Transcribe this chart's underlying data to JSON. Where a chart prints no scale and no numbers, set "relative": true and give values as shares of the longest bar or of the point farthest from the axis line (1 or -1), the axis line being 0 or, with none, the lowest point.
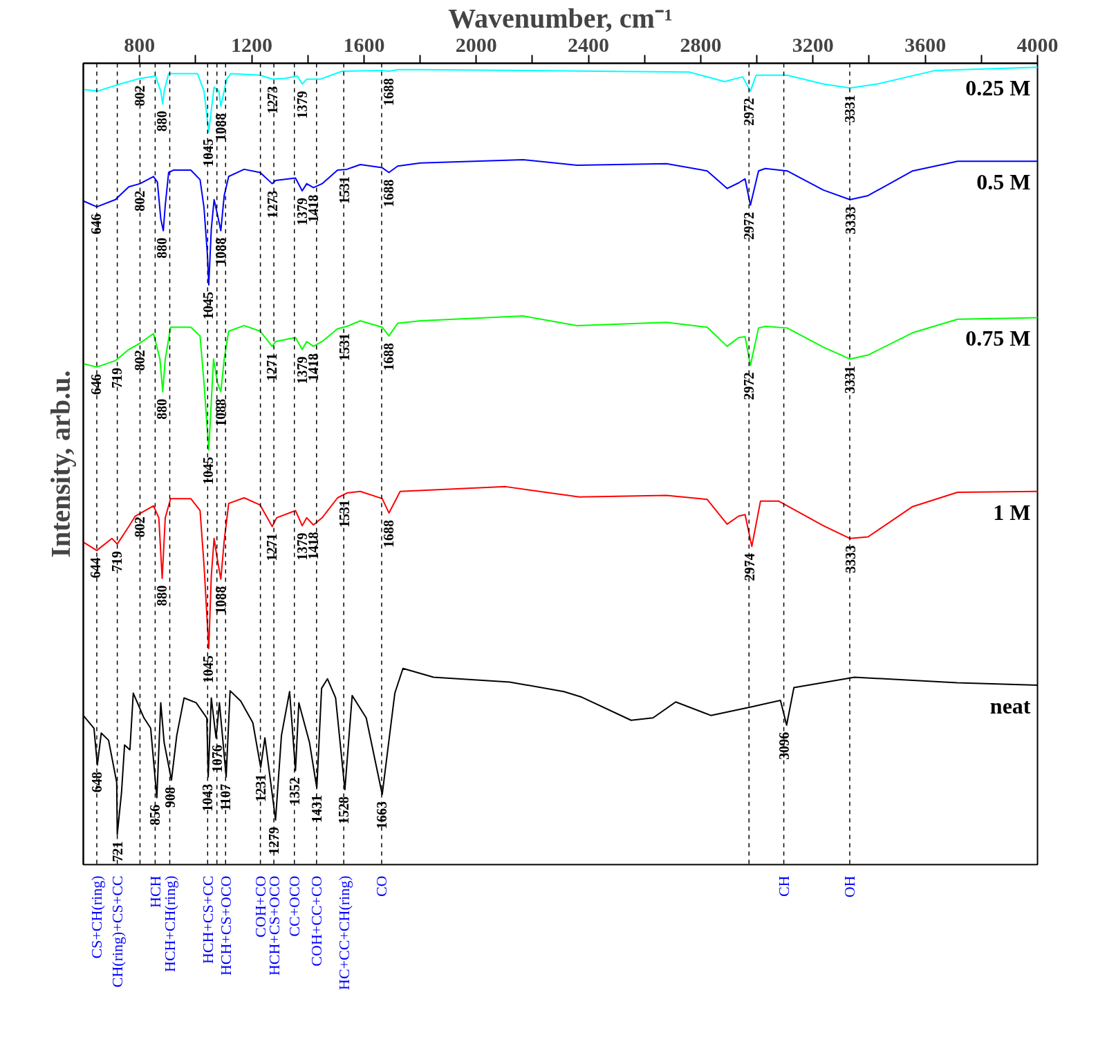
{
  "chart_data": {
    "type": "line",
    "relative": true,
    "xlabel": "Wavenumber, cm⁻¹",
    "ylabel": "Intensity, arb.u.",
    "tick_labels": "x",
    "marker": "none",
    "line_style": "solid",
    "xlim": [
      600,
      4000
    ],
    "xticks": [
      800,
      {
        "value": 1000,
        "label": null
      },
      1200,
      {
        "value": 1400,
        "label": null
      },
      1600,
      {
        "value": 1800,
        "label": null
      },
      2000,
      {
        "value": 2200,
        "label": null
      },
      2400,
      {
        "value": 2600,
        "label": null
      },
      2800,
      {
        "value": 3000,
        "label": null
      },
      3200,
      {
        "value": 3400,
        "label": null
      },
      3600,
      {
        "value": 3800,
        "label": null
      },
      4000
    ],
    "series": [
      {
        "name": "0.25 M",
        "color": "#00ffff",
        "x": [
          602,
          650,
          731,
          802,
          857,
          876,
          883,
          888,
          904,
          1007,
          1030,
          1047,
          1059,
          1066,
          1083,
          1090,
          1111,
          1125,
          1230,
          1273,
          1316,
          1363,
          1380,
          1396,
          1444,
          1522,
          1665,
          1689,
          1720,
          1801,
          2759,
          2885,
          2949,
          2977,
          2997,
          3108,
          3237,
          3332,
          3429,
          3636,
          4000
        ],
        "values": [
          0.972,
          0.97,
          0.979,
          0.986,
          0.989,
          0.97,
          0.954,
          0.97,
          0.992,
          0.992,
          0.97,
          0.919,
          0.955,
          0.975,
          0.97,
          0.951,
          0.985,
          0.992,
          0.99,
          0.985,
          0.986,
          0.989,
          0.979,
          0.985,
          0.985,
          0.995,
          0.996,
          0.995,
          0.997,
          0.997,
          0.994,
          0.982,
          0.988,
          0.97,
          0.99,
          0.99,
          0.979,
          0.974,
          0.979,
          0.996,
          1.0
        ]
      },
      {
        "name": "0.5 M",
        "color": "#0000ff",
        "x": [
          602,
          648,
          714,
          762,
          802,
          850,
          864,
          876,
          885,
          892,
          904,
          921,
          983,
          1016,
          1030,
          1042,
          1047,
          1056,
          1066,
          1078,
          1090,
          1102,
          1118,
          1173,
          1230,
          1273,
          1285,
          1356,
          1380,
          1396,
          1420,
          1451,
          1506,
          1539,
          1587,
          1665,
          1689,
          1720,
          1801,
          2167,
          2359,
          2678,
          2823,
          2894,
          2935,
          2958,
          2977,
          3006,
          3030,
          3108,
          3237,
          3332,
          3396,
          3555,
          3715,
          4000
        ],
        "values": [
          0.832,
          0.825,
          0.834,
          0.85,
          0.854,
          0.863,
          0.856,
          0.81,
          0.795,
          0.827,
          0.868,
          0.871,
          0.871,
          0.859,
          0.824,
          0.766,
          0.727,
          0.797,
          0.834,
          0.815,
          0.795,
          0.839,
          0.863,
          0.872,
          0.868,
          0.854,
          0.858,
          0.861,
          0.845,
          0.854,
          0.849,
          0.854,
          0.871,
          0.872,
          0.878,
          0.874,
          0.868,
          0.876,
          0.88,
          0.884,
          0.877,
          0.879,
          0.87,
          0.848,
          0.855,
          0.86,
          0.827,
          0.87,
          0.873,
          0.87,
          0.846,
          0.834,
          0.839,
          0.87,
          0.882,
          0.882
        ]
      },
      {
        "name": "0.75 M",
        "color": "#00ff00",
        "x": [
          602,
          648,
          714,
          762,
          802,
          850,
          873,
          883,
          892,
          911,
          983,
          1016,
          1030,
          1047,
          1064,
          1078,
          1090,
          1102,
          1118,
          1173,
          1230,
          1273,
          1285,
          1356,
          1380,
          1396,
          1420,
          1451,
          1506,
          1539,
          1587,
          1665,
          1689,
          1720,
          1801,
          2167,
          2359,
          2678,
          2823,
          2894,
          2935,
          2958,
          2977,
          3006,
          3030,
          3108,
          3237,
          3332,
          3396,
          3555,
          3715,
          4000
        ],
        "values": [
          0.628,
          0.624,
          0.632,
          0.646,
          0.654,
          0.666,
          0.634,
          0.593,
          0.634,
          0.674,
          0.674,
          0.663,
          0.604,
          0.52,
          0.634,
          0.604,
          0.593,
          0.634,
          0.669,
          0.676,
          0.669,
          0.65,
          0.656,
          0.661,
          0.646,
          0.656,
          0.65,
          0.656,
          0.672,
          0.675,
          0.682,
          0.674,
          0.663,
          0.679,
          0.682,
          0.688,
          0.676,
          0.68,
          0.674,
          0.65,
          0.661,
          0.662,
          0.626,
          0.673,
          0.675,
          0.673,
          0.649,
          0.634,
          0.639,
          0.667,
          0.684,
          0.686
        ]
      },
      {
        "name": "1 M",
        "color": "#ff0000",
        "x": [
          602,
          648,
          702,
          721,
          762,
          785,
          850,
          869,
          881,
          892,
          911,
          983,
          1016,
          1030,
          1047,
          1056,
          1066,
          1078,
          1090,
          1102,
          1118,
          1173,
          1230,
          1273,
          1289,
          1356,
          1380,
          1396,
          1420,
          1451,
          1506,
          1539,
          1587,
          1665,
          1689,
          1729,
          2105,
          2367,
          2678,
          2823,
          2894,
          2935,
          2958,
          2982,
          3013,
          3077,
          3237,
          3332,
          3396,
          3555,
          3715,
          4000
        ],
        "values": [
          0.404,
          0.394,
          0.409,
          0.402,
          0.424,
          0.437,
          0.45,
          0.435,
          0.359,
          0.435,
          0.459,
          0.459,
          0.444,
          0.376,
          0.271,
          0.362,
          0.409,
          0.382,
          0.358,
          0.406,
          0.453,
          0.46,
          0.451,
          0.424,
          0.435,
          0.444,
          0.425,
          0.435,
          0.426,
          0.435,
          0.46,
          0.466,
          0.468,
          0.459,
          0.441,
          0.468,
          0.474,
          0.461,
          0.463,
          0.458,
          0.427,
          0.437,
          0.439,
          0.399,
          0.456,
          0.456,
          0.425,
          0.409,
          0.411,
          0.449,
          0.467,
          0.468
        ]
      },
      {
        "name": "neat",
        "color": "#000000",
        "x": [
          600,
          638,
          650,
          664,
          690,
          719,
          721,
          736,
          747,
          766,
          778,
          816,
          840,
          862,
          876,
          888,
          914,
          933,
          959,
          1002,
          1040,
          1045,
          1056,
          1073,
          1085,
          1109,
          1123,
          1161,
          1204,
          1232,
          1247,
          1285,
          1306,
          1335,
          1356,
          1368,
          1406,
          1432,
          1449,
          1470,
          1499,
          1532,
          1558,
          1608,
          1665,
          1710,
          1739,
          1848,
          2119,
          2312,
          2376,
          2552,
          2630,
          2711,
          2837,
          2982,
          3084,
          3106,
          3132,
          3348,
          3714,
          4000
        ],
        "values": [
          0.187,
          0.171,
          0.125,
          0.165,
          0.156,
          0.103,
          0.038,
          0.09,
          0.15,
          0.144,
          0.215,
          0.184,
          0.171,
          0.084,
          0.203,
          0.153,
          0.106,
          0.162,
          0.209,
          0.203,
          0.184,
          0.11,
          0.209,
          0.159,
          0.203,
          0.11,
          0.218,
          0.205,
          0.178,
          0.122,
          0.159,
          0.056,
          0.162,
          0.217,
          0.118,
          0.203,
          0.153,
          0.096,
          0.221,
          0.233,
          0.209,
          0.094,
          0.212,
          0.184,
          0.088,
          0.215,
          0.246,
          0.235,
          0.229,
          0.217,
          0.21,
          0.181,
          0.184,
          0.204,
          0.187,
          0.198,
          0.206,
          0.175,
          0.222,
          0.235,
          0.228,
          0.225
        ]
      }
    ],
    "annotations": [
      {
        "text": "802",
        "x": 802,
        "y": 0.986
      },
      {
        "text": "880",
        "x": 880,
        "y": 0.954
      },
      {
        "text": "1045",
        "x": 1045,
        "y": 0.919
      },
      {
        "text": "1088",
        "x": 1088,
        "y": 0.951
      },
      {
        "text": "1273",
        "x": 1273,
        "y": 0.985
      },
      {
        "text": "1379",
        "x": 1379,
        "y": 0.979
      },
      {
        "text": "1688",
        "x": 1688,
        "y": 0.995
      },
      {
        "text": "2972",
        "x": 2972,
        "y": 0.97
      },
      {
        "text": "3331",
        "x": 3331,
        "y": 0.974
      },
      {
        "text": "646",
        "x": 646,
        "y": 0.825
      },
      {
        "text": "802",
        "x": 802,
        "y": 0.854
      },
      {
        "text": "880",
        "x": 880,
        "y": 0.795
      },
      {
        "text": "1045",
        "x": 1045,
        "y": 0.727
      },
      {
        "text": "1088",
        "x": 1088,
        "y": 0.795
      },
      {
        "text": "1273",
        "x": 1273,
        "y": 0.854
      },
      {
        "text": "1379",
        "x": 1379,
        "y": 0.845
      },
      {
        "text": "1418",
        "x": 1418,
        "y": 0.849
      },
      {
        "text": "1531",
        "x": 1531,
        "y": 0.872
      },
      {
        "text": "1688",
        "x": 1688,
        "y": 0.868
      },
      {
        "text": "2972",
        "x": 2972,
        "y": 0.827
      },
      {
        "text": "3333",
        "x": 3333,
        "y": 0.834
      },
      {
        "text": "646",
        "x": 646,
        "y": 0.624
      },
      {
        "text": "719",
        "x": 719,
        "y": 0.632
      },
      {
        "text": "802",
        "x": 802,
        "y": 0.654
      },
      {
        "text": "880",
        "x": 880,
        "y": 0.593
      },
      {
        "text": "1045",
        "x": 1045,
        "y": 0.52
      },
      {
        "text": "1088",
        "x": 1088,
        "y": 0.593
      },
      {
        "text": "1271",
        "x": 1271,
        "y": 0.65
      },
      {
        "text": "1379",
        "x": 1379,
        "y": 0.646
      },
      {
        "text": "1418",
        "x": 1418,
        "y": 0.65
      },
      {
        "text": "1531",
        "x": 1531,
        "y": 0.675
      },
      {
        "text": "1688",
        "x": 1688,
        "y": 0.663
      },
      {
        "text": "2972",
        "x": 2972,
        "y": 0.626
      },
      {
        "text": "3331",
        "x": 3331,
        "y": 0.634
      },
      {
        "text": "644",
        "x": 644,
        "y": 0.394
      },
      {
        "text": "719",
        "x": 719,
        "y": 0.402
      },
      {
        "text": "802",
        "x": 802,
        "y": 0.445
      },
      {
        "text": "880",
        "x": 880,
        "y": 0.359
      },
      {
        "text": "1045",
        "x": 1045,
        "y": 0.271
      },
      {
        "text": "1088",
        "x": 1088,
        "y": 0.358
      },
      {
        "text": "1271",
        "x": 1271,
        "y": 0.424
      },
      {
        "text": "1379",
        "x": 1379,
        "y": 0.425
      },
      {
        "text": "1418",
        "x": 1418,
        "y": 0.426
      },
      {
        "text": "1531",
        "x": 1531,
        "y": 0.466
      },
      {
        "text": "1688",
        "x": 1688,
        "y": 0.441
      },
      {
        "text": "2974",
        "x": 2974,
        "y": 0.399
      },
      {
        "text": "3333",
        "x": 3333,
        "y": 0.409
      },
      {
        "text": "648",
        "x": 648,
        "y": 0.125
      },
      {
        "text": "721",
        "x": 721,
        "y": 0.038
      },
      {
        "text": "856",
        "x": 856,
        "y": 0.084
      },
      {
        "text": "908",
        "x": 908,
        "y": 0.106
      },
      {
        "text": "1043",
        "x": 1043,
        "y": 0.11
      },
      {
        "text": "1076",
        "x": 1076,
        "y": 0.159
      },
      {
        "text": "1107",
        "x": 1107,
        "y": 0.11
      },
      {
        "text": "1231",
        "x": 1231,
        "y": 0.122
      },
      {
        "text": "1279",
        "x": 1279,
        "y": 0.056
      },
      {
        "text": "1352",
        "x": 1352,
        "y": 0.118
      },
      {
        "text": "1431",
        "x": 1431,
        "y": 0.096
      },
      {
        "text": "1528",
        "x": 1528,
        "y": 0.094
      },
      {
        "text": "1663",
        "x": 1663,
        "y": 0.088
      },
      {
        "text": "3096",
        "x": 3096,
        "y": 0.175
      }
    ],
    "ref_lines": [
      {
        "axis": "x",
        "value": 648,
        "label": "CS+CH(ring)",
        "color": "#000000",
        "line_style": "dashed"
      },
      {
        "axis": "x",
        "value": 721,
        "label": "CH(ring)+CS+CC",
        "color": "#000000",
        "line_style": "dashed"
      },
      {
        "axis": "x",
        "value": 802,
        "label": null,
        "color": "#000000",
        "line_style": "dashed"
      },
      {
        "axis": "x",
        "value": 856,
        "label": "HCH",
        "color": "#000000",
        "line_style": "dashed"
      },
      {
        "axis": "x",
        "value": 908,
        "label": "HCH+CH(ring)",
        "color": "#000000",
        "line_style": "dashed"
      },
      {
        "axis": "x",
        "value": 1043,
        "label": "HCH+CS+CC",
        "color": "#000000",
        "line_style": "dashed"
      },
      {
        "axis": "x",
        "value": 1076,
        "label": null,
        "color": "#000000",
        "line_style": "dashed"
      },
      {
        "axis": "x",
        "value": 1107,
        "label": "HCH+CS+OCO",
        "color": "#000000",
        "line_style": "dashed"
      },
      {
        "axis": "x",
        "value": 1231,
        "label": "COH+CO",
        "color": "#000000",
        "line_style": "dashed"
      },
      {
        "axis": "x",
        "value": 1279,
        "label": "HCH+CS+OCO",
        "color": "#000000",
        "line_style": "dashed"
      },
      {
        "axis": "x",
        "value": 1352,
        "label": "CC+OCO",
        "color": "#000000",
        "line_style": "dashed"
      },
      {
        "axis": "x",
        "value": 1431,
        "label": "COH+CC+CO",
        "color": "#000000",
        "line_style": "dashed"
      },
      {
        "axis": "x",
        "value": 1528,
        "label": "HC+CC+CH(ring)",
        "color": "#000000",
        "line_style": "dashed"
      },
      {
        "axis": "x",
        "value": 1663,
        "label": "CO",
        "color": "#000000",
        "line_style": "dashed"
      },
      {
        "axis": "x",
        "value": 2972,
        "label": null,
        "color": "#000000",
        "line_style": "dashed"
      },
      {
        "axis": "x",
        "value": 3096,
        "label": "CH",
        "color": "#000000",
        "line_style": "dashed"
      },
      {
        "axis": "x",
        "value": 3331,
        "label": "OH",
        "color": "#000000",
        "line_style": "dashed"
      }
    ]
  }
}
